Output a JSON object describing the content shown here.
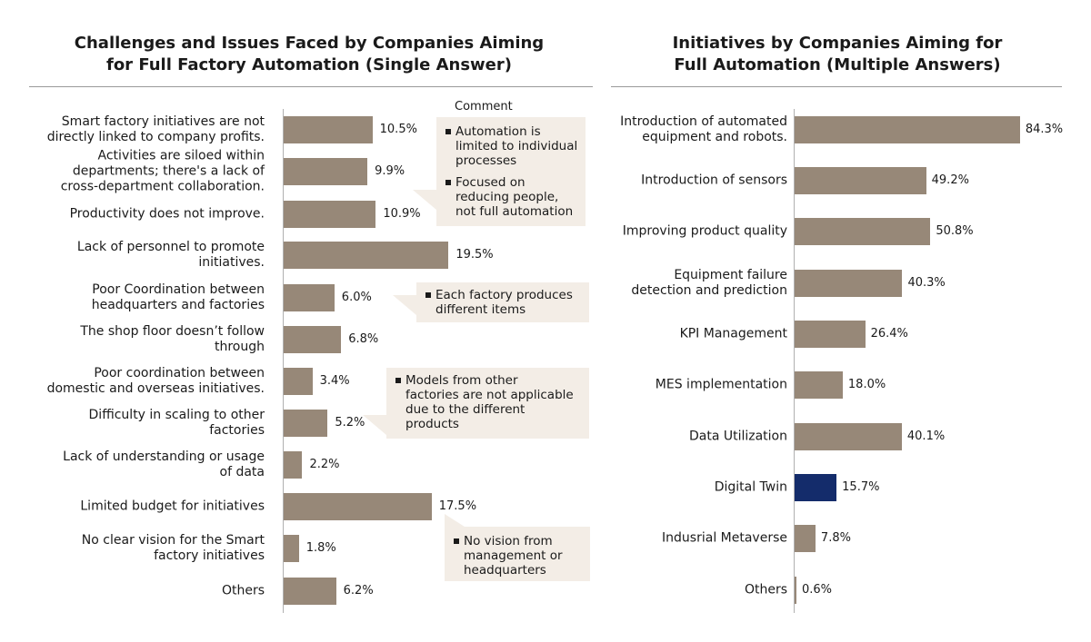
{
  "chart_data": [
    {
      "type": "bar",
      "orientation": "horizontal",
      "title": "Challenges and Issues Faced by Companies Aiming\nfor Full Factory Automation (Single Answer)",
      "categories": [
        "Smart factory initiatives are not\ndirectly linked to company profits.",
        "Activities are siloed within\ndepartments; there's a lack of\ncross-department collaboration.",
        "Productivity does not improve.",
        "Lack of personnel to promote\ninitiatives.",
        "Poor Coordination between\nheadquarters and factories",
        "The shop floor doesn’t follow\nthrough",
        "Poor coordination between\ndomestic and overseas initiatives.",
        "Difficulty in scaling to other\nfactories",
        "Lack of understanding or usage\nof data",
        "Limited budget for initiatives",
        "No clear vision for the Smart\nfactory initiatives",
        "Others"
      ],
      "values": [
        10.5,
        9.9,
        10.9,
        19.5,
        6.0,
        6.8,
        3.4,
        5.2,
        2.2,
        17.5,
        1.8,
        6.2
      ],
      "value_labels": [
        "10.5%",
        "9.9%",
        "10.9%",
        "19.5%",
        "6.0%",
        "6.8%",
        "3.4%",
        "5.2%",
        "2.2%",
        "17.5%",
        "1.8%",
        "6.2%"
      ],
      "unit": "%",
      "xlim": [
        0,
        40
      ],
      "comment_header": "Comment",
      "comments": [
        {
          "attached_to": 0,
          "items": [
            "Automation is\nlimited to individual\nprocesses",
            "Focused on\nreducing people,\nnot full automation"
          ]
        },
        {
          "attached_to": 4,
          "items": [
            "Each factory produces\ndifferent items"
          ]
        },
        {
          "attached_to": 7,
          "items": [
            "Models from other\nfactories are not applicable\ndue to the different\nproducts"
          ]
        },
        {
          "attached_to": 9,
          "items": [
            "No vision from\nmanagement or\nheadquarters"
          ]
        }
      ]
    },
    {
      "type": "bar",
      "orientation": "horizontal",
      "title": "Initiatives by Companies Aiming for\nFull Automation (Multiple Answers)",
      "categories": [
        "Introduction of automated\nequipment and robots.",
        "Introduction of sensors",
        "Improving product quality",
        "Equipment failure\ndetection and prediction",
        "KPI Management",
        "MES implementation",
        "Data Utilization",
        "Digital Twin",
        "Indusrial Metaverse",
        "Others"
      ],
      "values": [
        84.3,
        49.2,
        50.8,
        40.3,
        26.4,
        18.0,
        40.1,
        15.7,
        7.8,
        0.6
      ],
      "value_labels": [
        "84.3%",
        "49.2%",
        "50.8%",
        "40.3%",
        "26.4%",
        "18.0%",
        "40.1%",
        "15.7%",
        "7.8%",
        "0.6%"
      ],
      "unit": "%",
      "highlight_index": 7,
      "colors": {
        "bar": "#978878",
        "highlight": "#142c6b"
      },
      "xlim": [
        0,
        100
      ]
    }
  ]
}
